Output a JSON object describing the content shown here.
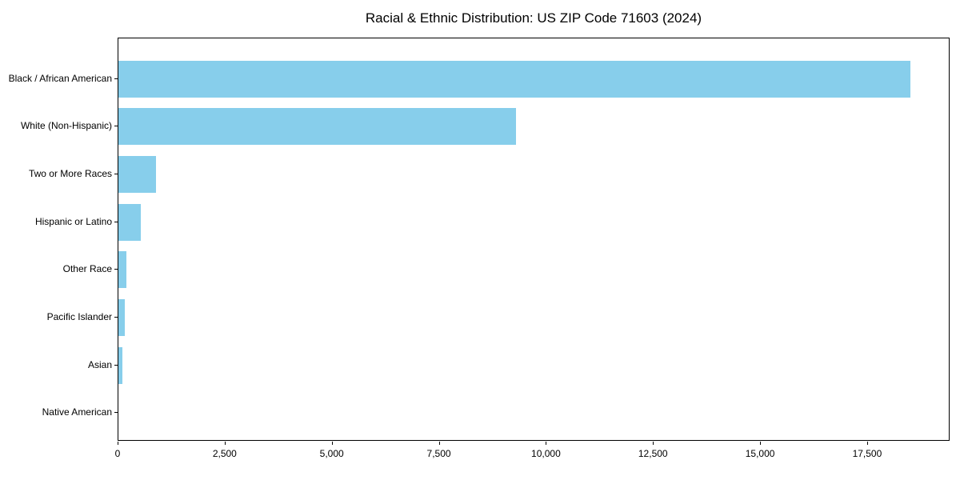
{
  "title": "Racial & Ethnic Distribution: US ZIP Code 71603 (2024)",
  "chart_data": {
    "type": "bar",
    "orientation": "horizontal",
    "title": "Racial & Ethnic Distribution: US ZIP Code 71603 (2024)",
    "categories": [
      "Black / African American",
      "White (Non-Hispanic)",
      "Two or More Races",
      "Hispanic or Latino",
      "Other Race",
      "Pacific Islander",
      "Asian",
      "Native American"
    ],
    "values": [
      18500,
      9280,
      870,
      530,
      190,
      155,
      100,
      0
    ],
    "xlabel": "",
    "ylabel": "",
    "xlim": [
      0,
      19425
    ],
    "x_ticks": [
      0,
      2500,
      5000,
      7500,
      10000,
      12500,
      15000,
      17500
    ],
    "x_tick_labels": [
      "0",
      "2,500",
      "5,000",
      "7,500",
      "10,000",
      "12,500",
      "15,000",
      "17,500"
    ],
    "bar_color": "#87CEEB",
    "text_color": "#000000",
    "spine_color": "#000000",
    "background_color": "#ffffff",
    "grid": false,
    "legend": null
  }
}
